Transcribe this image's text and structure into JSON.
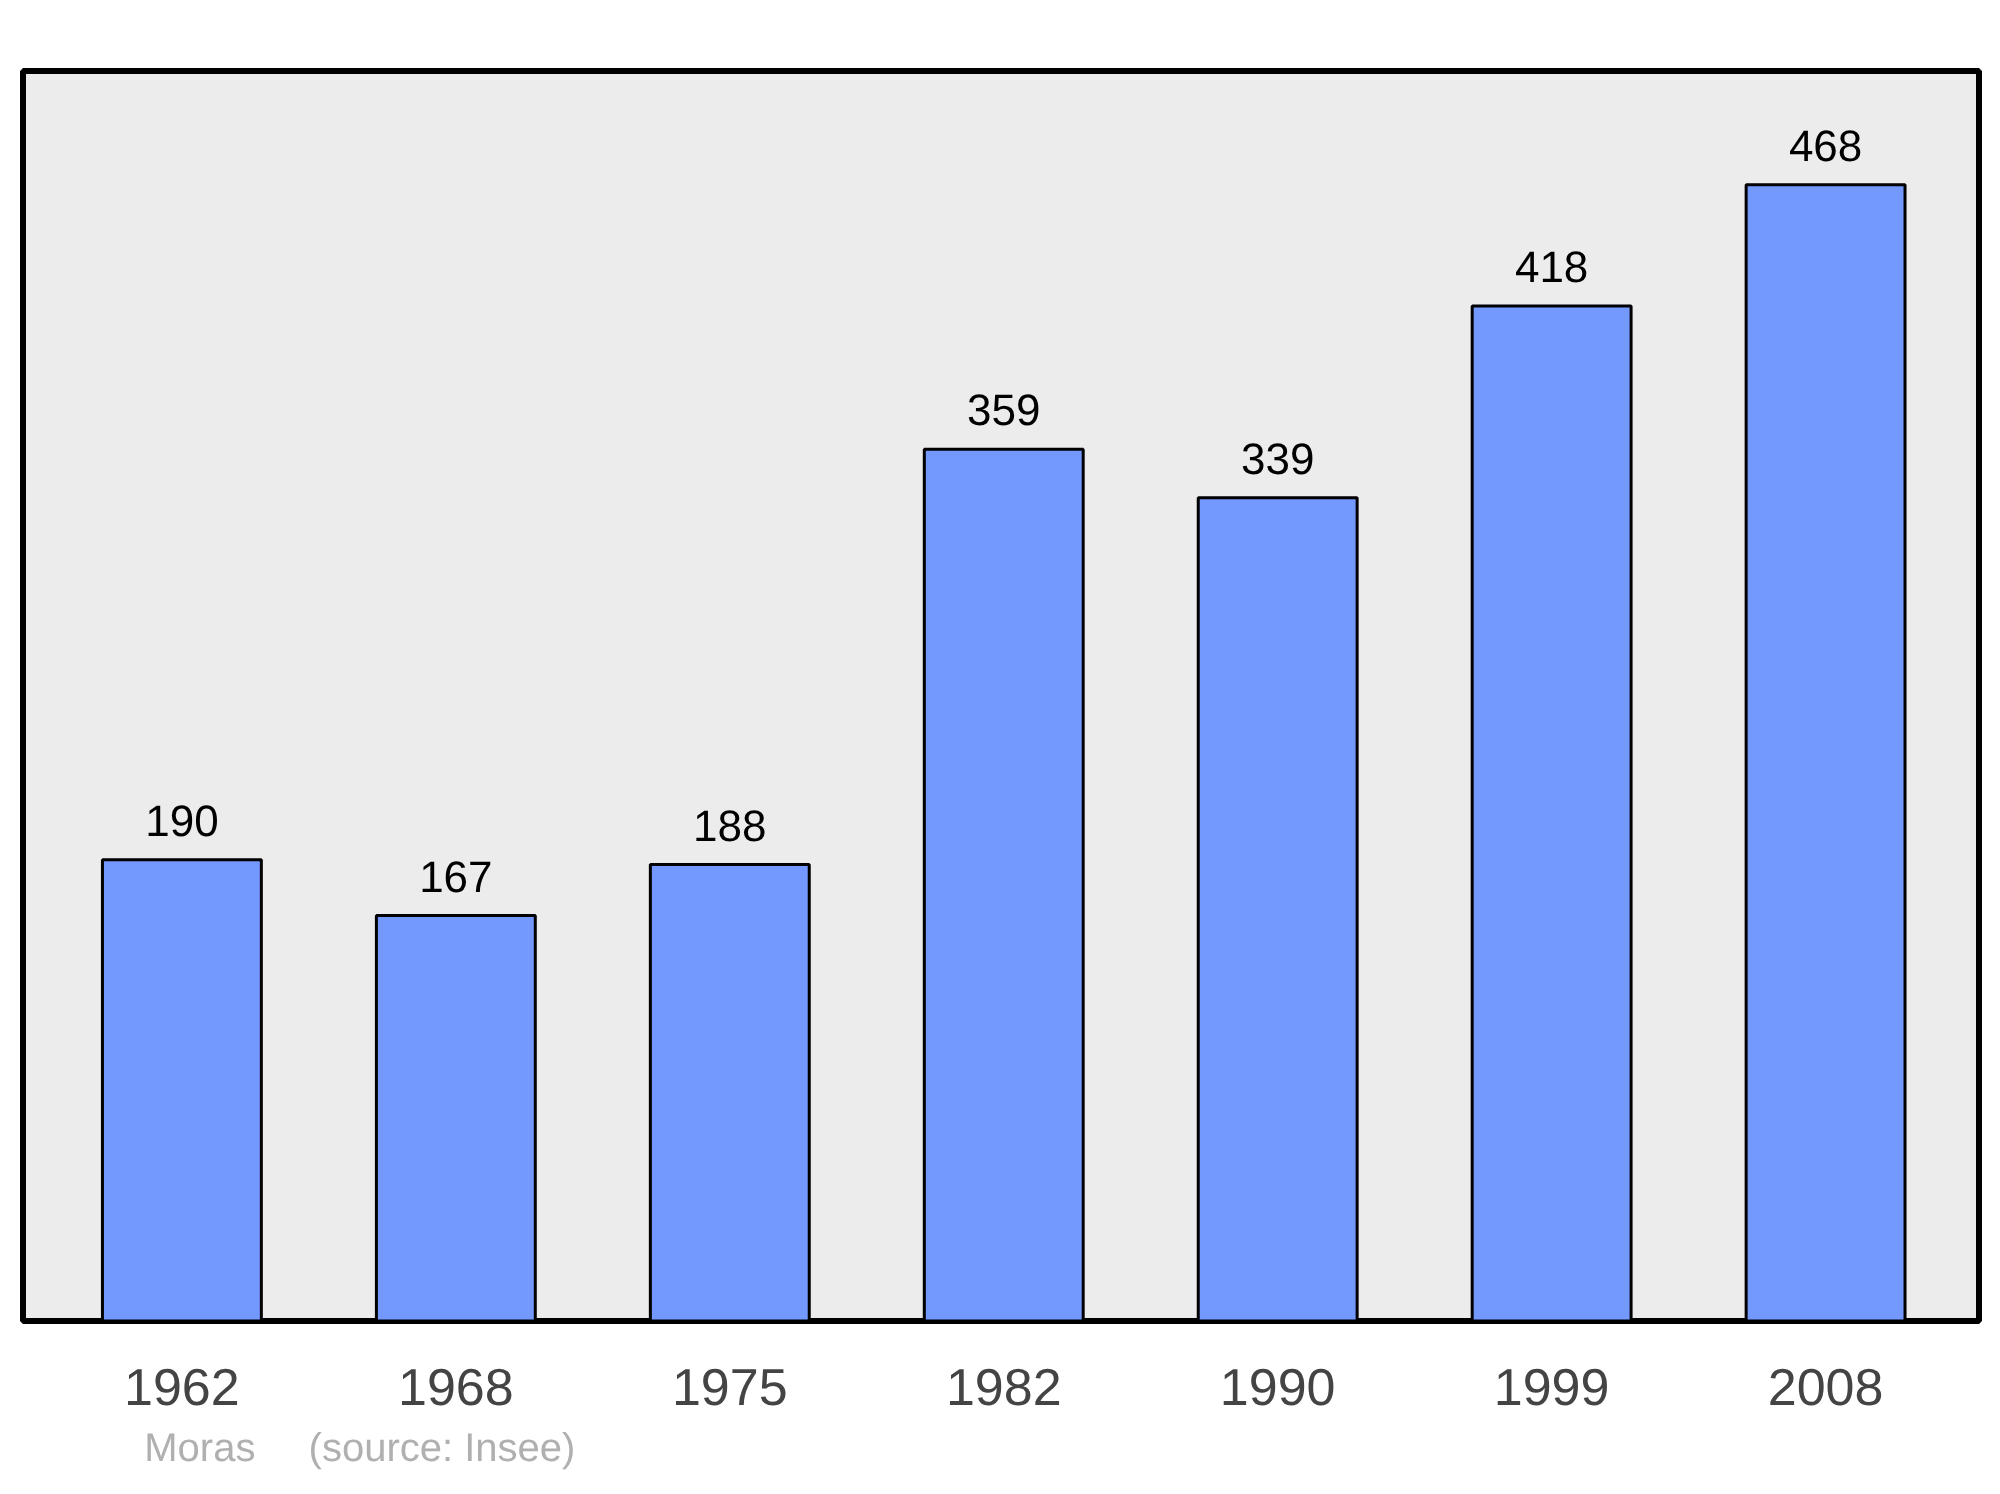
{
  "chart_data": {
    "type": "bar",
    "categories": [
      "1962",
      "1968",
      "1975",
      "1982",
      "1990",
      "1999",
      "2008"
    ],
    "values": [
      190,
      167,
      188,
      359,
      339,
      418,
      468
    ],
    "color": "#7399ff",
    "data_labels": true,
    "grid": false,
    "annotations": [
      "Moras",
      "(source: Insee)"
    ]
  }
}
